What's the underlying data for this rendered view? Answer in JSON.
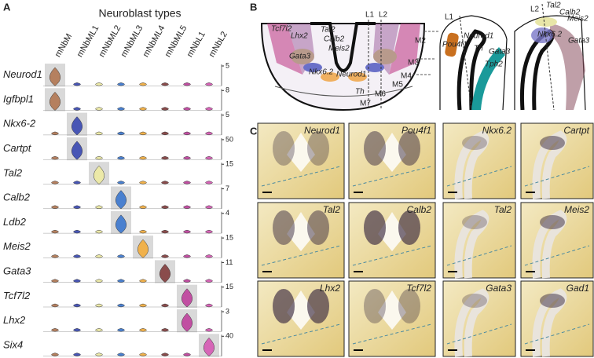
{
  "panel_a": {
    "letter": "A",
    "title": "Neuroblast types",
    "cell_types": [
      "mNbM",
      "mNbML1",
      "mNbML2",
      "mNbML3",
      "mNbML4",
      "mNbML5",
      "mNbL1",
      "mNbL2"
    ],
    "colors": [
      "#b5805f",
      "#4856b5",
      "#ece9a8",
      "#4a80cf",
      "#f0b14c",
      "#8a4c4c",
      "#c14fa2",
      "#d665b7"
    ],
    "genes": [
      {
        "name": "Neurod1",
        "max": 5,
        "highlight": 0
      },
      {
        "name": "Igfbpl1",
        "max": 8,
        "highlight": 0
      },
      {
        "name": "Nkx6-2",
        "max": 5,
        "highlight": 1
      },
      {
        "name": "Cartpt",
        "max": 50,
        "highlight": 1
      },
      {
        "name": "Tal2",
        "max": 15,
        "highlight": 2
      },
      {
        "name": "Calb2",
        "max": 7,
        "highlight": 3
      },
      {
        "name": "Ldb2",
        "max": 4,
        "highlight": 3
      },
      {
        "name": "Meis2",
        "max": 15,
        "highlight": 4
      },
      {
        "name": "Gata3",
        "max": 11,
        "highlight": 5
      },
      {
        "name": "Tcf7l2",
        "max": 15,
        "highlight": 6
      },
      {
        "name": "Lhx2",
        "max": 3,
        "highlight": 6
      },
      {
        "name": "Six4",
        "max": 40,
        "highlight": 7
      }
    ]
  },
  "panel_b": {
    "letter": "B",
    "main_labels": [
      "Tcf7l2",
      "Lhx2",
      "Tal2",
      "Calb2",
      "Meis2",
      "Gata3",
      "Nkx6.2",
      "Neurod1",
      "Th",
      "L1",
      "L2",
      "M2",
      "M3",
      "M4",
      "M5",
      "M6",
      "M7"
    ],
    "l1_labels": [
      "L1",
      "Neurod1",
      "Pou4f1",
      "Th",
      "Gata3",
      "Tph2"
    ],
    "l2_labels": [
      "L2",
      "Tal2",
      "Calb2",
      "Meis2",
      "Nkx6.2",
      "Gata3"
    ]
  },
  "panel_c": {
    "letter": "C",
    "images": [
      "Neurod1",
      "Pou4f1",
      "Nkx6.2",
      "Cartpt",
      "Tal2",
      "Calb2",
      "Tal2",
      "Meis2",
      "Lhx2",
      "Tcf7l2",
      "Gata3",
      "Gad1"
    ]
  }
}
